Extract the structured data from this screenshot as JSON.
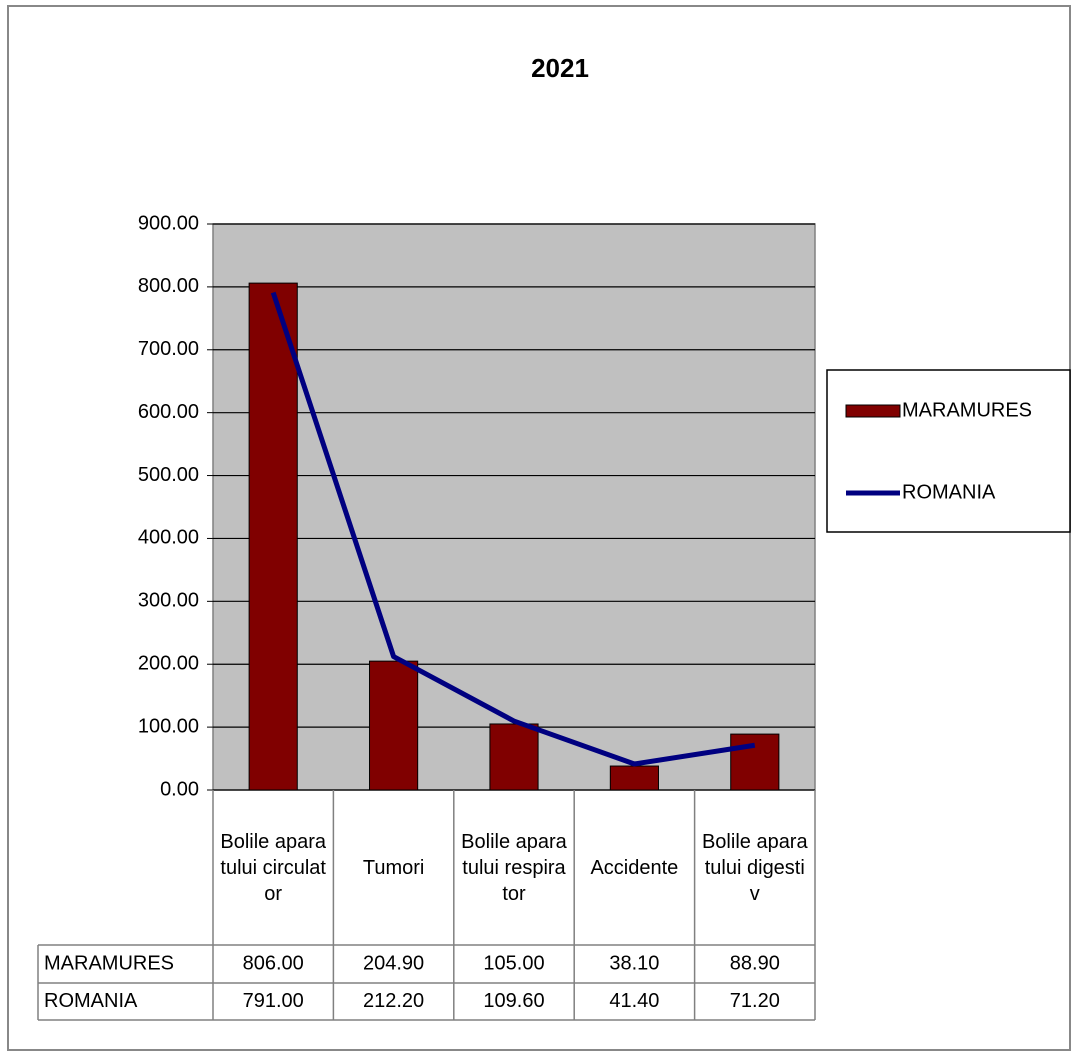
{
  "chart_data": {
    "type": "bar_line",
    "title": "2021",
    "categories": [
      "Bolile aparatului circulator",
      "Tumori",
      "Bolile aparatului respirator",
      "Accidente",
      "Bolile aparatului digestiv"
    ],
    "series": [
      {
        "name": "MARAMURES",
        "color": "#800000",
        "type": "bar",
        "values": [
          806.0,
          204.9,
          105.0,
          38.1,
          88.9
        ],
        "value_labels": [
          "806.00",
          "204.90",
          "105.00",
          "38.10",
          "88.90"
        ]
      },
      {
        "name": "ROMANIA",
        "color": "#000080",
        "type": "line",
        "values": [
          791.0,
          212.2,
          109.6,
          41.4,
          71.2
        ],
        "value_labels": [
          "791.00",
          "212.20",
          "109.60",
          "41.40",
          "71.20"
        ]
      }
    ],
    "ylim": [
      0,
      900
    ],
    "yticks": [
      {
        "value": 0,
        "label": "0.00"
      },
      {
        "value": 100,
        "label": "100.00"
      },
      {
        "value": 200,
        "label": "200.00"
      },
      {
        "value": 300,
        "label": "300.00"
      },
      {
        "value": 400,
        "label": "400.00"
      },
      {
        "value": 500,
        "label": "500.00"
      },
      {
        "value": 600,
        "label": "600.00"
      },
      {
        "value": 700,
        "label": "700.00"
      },
      {
        "value": 800,
        "label": "800.00"
      },
      {
        "value": 900,
        "label": "900.00"
      }
    ],
    "grid": true,
    "legend": "right",
    "plot_background": "#c0c0c0"
  }
}
